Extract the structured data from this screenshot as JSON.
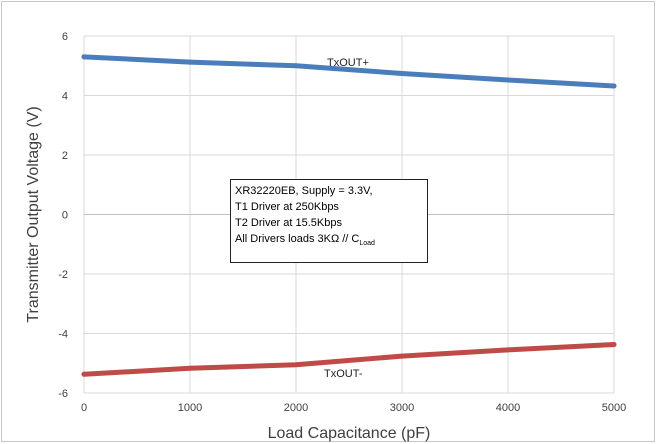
{
  "chart_data": {
    "type": "line",
    "xlabel": "Load Capacitance (pF)",
    "ylabel": "Transmitter Output Voltage (V)",
    "xlim": [
      0,
      5000
    ],
    "ylim": [
      -6,
      6
    ],
    "x_ticks": [
      0,
      1000,
      2000,
      3000,
      4000,
      5000
    ],
    "y_ticks": [
      -6,
      -4,
      -2,
      0,
      2,
      4,
      6
    ],
    "grid": true,
    "x": [
      0,
      1000,
      2000,
      3000,
      4000,
      5000
    ],
    "series": [
      {
        "name": "TxOUT+",
        "color": "#4a7ebb",
        "values": [
          5.3,
          5.12,
          5.0,
          4.74,
          4.52,
          4.32
        ]
      },
      {
        "name": "TxOUT-",
        "color": "#be4b48",
        "values": [
          -5.37,
          -5.17,
          -5.05,
          -4.76,
          -4.55,
          -4.37
        ]
      }
    ],
    "annotation": {
      "lines": [
        "XR32220EB, Supply = 3.3V,",
        "T1 Driver at 250Kbps",
        "T2 Driver at 15.5Kbps",
        "All Drivers loads 3KΩ // C"
      ],
      "subscript": "Load"
    }
  }
}
